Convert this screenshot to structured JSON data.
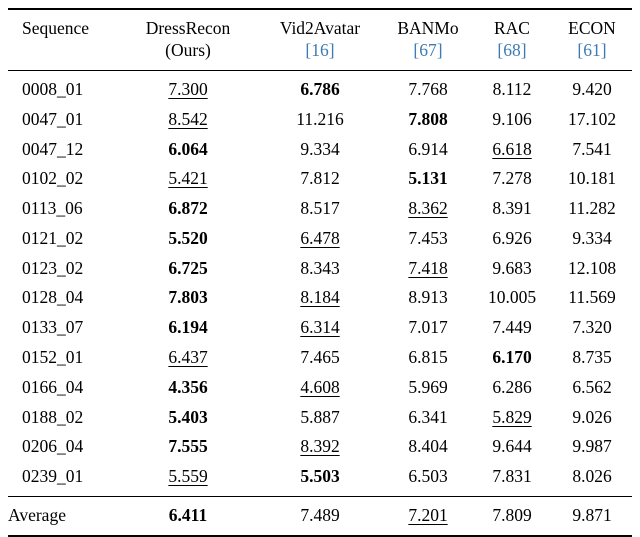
{
  "colors": {
    "cite": "#3d7bb0",
    "text": "#000000",
    "background": "#ffffff"
  },
  "table": {
    "columns": [
      {
        "key": "sequence",
        "name": "Sequence",
        "sub": "",
        "cite": false
      },
      {
        "key": "dressrecon",
        "name": "DressRecon",
        "sub": "(Ours)",
        "cite": false
      },
      {
        "key": "vid2avatar",
        "name": "Vid2Avatar",
        "sub": "[16]",
        "cite": true
      },
      {
        "key": "banmo",
        "name": "BANMo",
        "sub": "[67]",
        "cite": true
      },
      {
        "key": "rac",
        "name": "RAC",
        "sub": "[68]",
        "cite": true
      },
      {
        "key": "econ",
        "name": "ECON",
        "sub": "[61]",
        "cite": true
      }
    ],
    "rows": [
      {
        "sequence": "0008_01",
        "values": [
          {
            "v": "7.300",
            "s": "second"
          },
          {
            "v": "6.786",
            "s": "best"
          },
          {
            "v": "7.768"
          },
          {
            "v": "8.112"
          },
          {
            "v": "9.420"
          }
        ]
      },
      {
        "sequence": "0047_01",
        "values": [
          {
            "v": "8.542",
            "s": "second"
          },
          {
            "v": "11.216"
          },
          {
            "v": "7.808",
            "s": "best"
          },
          {
            "v": "9.106"
          },
          {
            "v": "17.102"
          }
        ]
      },
      {
        "sequence": "0047_12",
        "values": [
          {
            "v": "6.064",
            "s": "best"
          },
          {
            "v": "9.334"
          },
          {
            "v": "6.914"
          },
          {
            "v": "6.618",
            "s": "second"
          },
          {
            "v": "7.541"
          }
        ]
      },
      {
        "sequence": "0102_02",
        "values": [
          {
            "v": "5.421",
            "s": "second"
          },
          {
            "v": "7.812"
          },
          {
            "v": "5.131",
            "s": "best"
          },
          {
            "v": "7.278"
          },
          {
            "v": "10.181"
          }
        ]
      },
      {
        "sequence": "0113_06",
        "values": [
          {
            "v": "6.872",
            "s": "best"
          },
          {
            "v": "8.517"
          },
          {
            "v": "8.362",
            "s": "second"
          },
          {
            "v": "8.391"
          },
          {
            "v": "11.282"
          }
        ]
      },
      {
        "sequence": "0121_02",
        "values": [
          {
            "v": "5.520",
            "s": "best"
          },
          {
            "v": "6.478",
            "s": "second"
          },
          {
            "v": "7.453"
          },
          {
            "v": "6.926"
          },
          {
            "v": "9.334"
          }
        ]
      },
      {
        "sequence": "0123_02",
        "values": [
          {
            "v": "6.725",
            "s": "best"
          },
          {
            "v": "8.343"
          },
          {
            "v": "7.418",
            "s": "second"
          },
          {
            "v": "9.683"
          },
          {
            "v": "12.108"
          }
        ]
      },
      {
        "sequence": "0128_04",
        "values": [
          {
            "v": "7.803",
            "s": "best"
          },
          {
            "v": "8.184",
            "s": "second"
          },
          {
            "v": "8.913"
          },
          {
            "v": "10.005"
          },
          {
            "v": "11.569"
          }
        ]
      },
      {
        "sequence": "0133_07",
        "values": [
          {
            "v": "6.194",
            "s": "best"
          },
          {
            "v": "6.314",
            "s": "second"
          },
          {
            "v": "7.017"
          },
          {
            "v": "7.449"
          },
          {
            "v": "7.320"
          }
        ]
      },
      {
        "sequence": "0152_01",
        "values": [
          {
            "v": "6.437",
            "s": "second"
          },
          {
            "v": "7.465"
          },
          {
            "v": "6.815"
          },
          {
            "v": "6.170",
            "s": "best"
          },
          {
            "v": "8.735"
          }
        ]
      },
      {
        "sequence": "0166_04",
        "values": [
          {
            "v": "4.356",
            "s": "best"
          },
          {
            "v": "4.608",
            "s": "second"
          },
          {
            "v": "5.969"
          },
          {
            "v": "6.286"
          },
          {
            "v": "6.562"
          }
        ]
      },
      {
        "sequence": "0188_02",
        "values": [
          {
            "v": "5.403",
            "s": "best"
          },
          {
            "v": "5.887"
          },
          {
            "v": "6.341"
          },
          {
            "v": "5.829",
            "s": "second"
          },
          {
            "v": "9.026"
          }
        ]
      },
      {
        "sequence": "0206_04",
        "values": [
          {
            "v": "7.555",
            "s": "best"
          },
          {
            "v": "8.392",
            "s": "second"
          },
          {
            "v": "8.404"
          },
          {
            "v": "9.644"
          },
          {
            "v": "9.987"
          }
        ]
      },
      {
        "sequence": "0239_01",
        "values": [
          {
            "v": "5.559",
            "s": "second"
          },
          {
            "v": "5.503",
            "s": "best"
          },
          {
            "v": "6.503"
          },
          {
            "v": "7.831"
          },
          {
            "v": "8.026"
          }
        ]
      }
    ],
    "average_row": {
      "sequence": "Average",
      "values": [
        {
          "v": "6.411",
          "s": "best"
        },
        {
          "v": "7.489"
        },
        {
          "v": "7.201",
          "s": "second"
        },
        {
          "v": "7.809"
        },
        {
          "v": "9.871"
        }
      ]
    }
  }
}
